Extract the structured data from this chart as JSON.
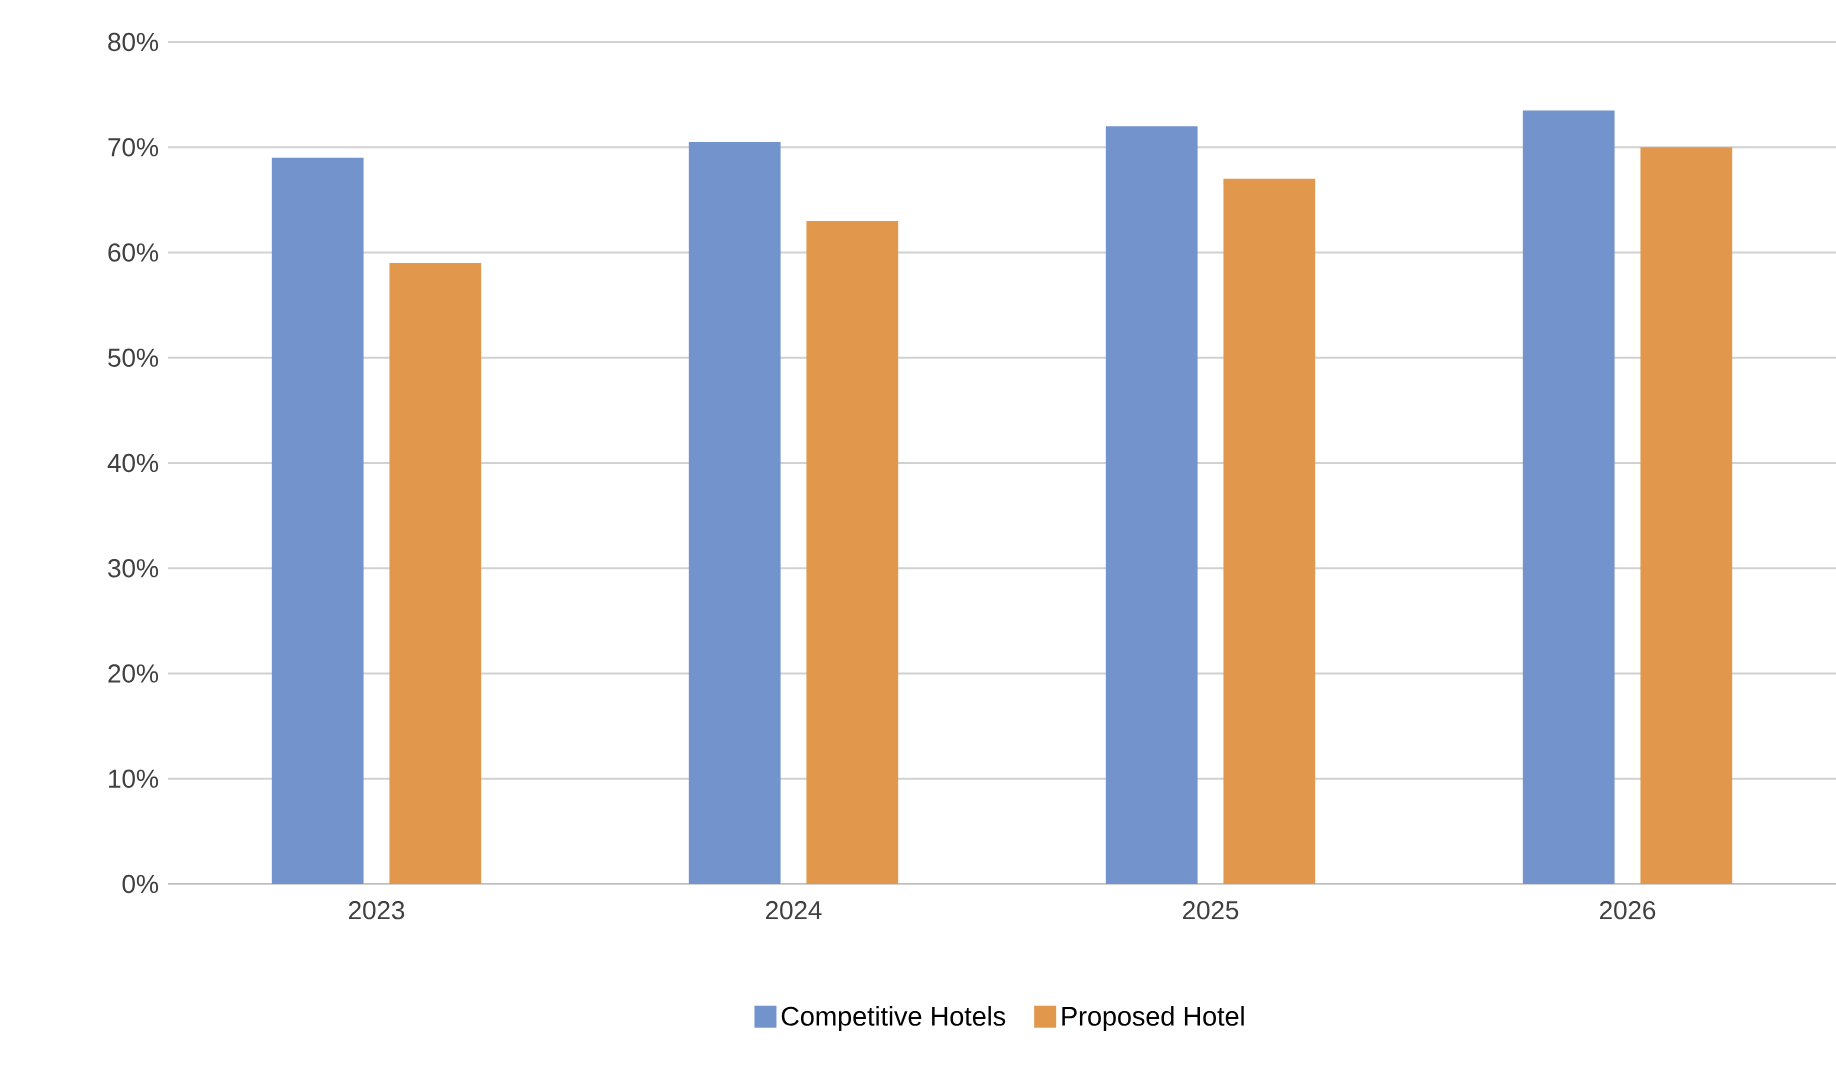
{
  "chart_data": {
    "type": "bar",
    "categories": [
      "2023",
      "2024",
      "2025",
      "2026"
    ],
    "series": [
      {
        "name": "Competitive Hotels",
        "color": "#7293cb",
        "values": [
          69,
          70.5,
          72,
          73.5
        ]
      },
      {
        "name": "Proposed Hotel",
        "color": "#e1974c",
        "values": [
          59,
          63,
          67,
          70
        ]
      }
    ],
    "ylim": [
      0,
      80
    ],
    "yticks": [
      {
        "value": 0,
        "label": "0%"
      },
      {
        "value": 10,
        "label": "10%"
      },
      {
        "value": 20,
        "label": "20%"
      },
      {
        "value": 30,
        "label": "30%"
      },
      {
        "value": 40,
        "label": "40%"
      },
      {
        "value": 50,
        "label": "50%"
      },
      {
        "value": 60,
        "label": "60%"
      },
      {
        "value": 70,
        "label": "70%"
      },
      {
        "value": 80,
        "label": "80%"
      }
    ],
    "grid": "y",
    "legend": "bottom"
  }
}
